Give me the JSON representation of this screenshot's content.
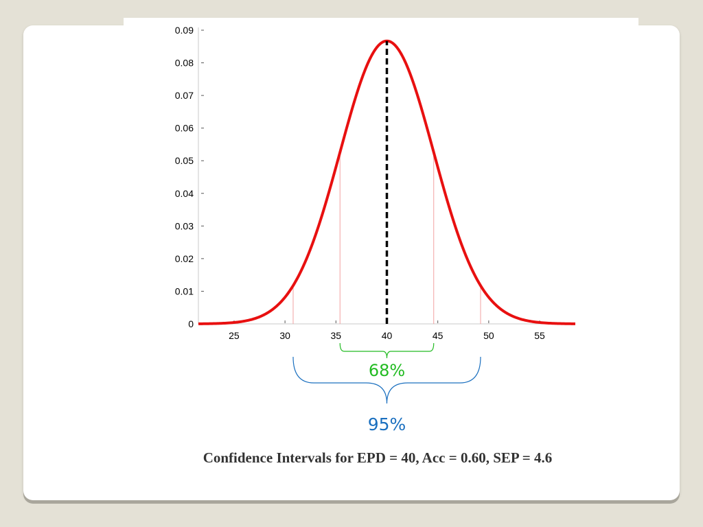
{
  "slide": {
    "caption": "Confidence Intervals for EPD = 40, Acc = 0.60, SEP = 4.6"
  },
  "chart_data": {
    "type": "line",
    "title": "",
    "xlabel": "",
    "ylabel": "",
    "xlim": [
      21.5,
      58.5
    ],
    "ylim": [
      0,
      0.09
    ],
    "x_ticks": [
      "25",
      "30",
      "35",
      "40",
      "45",
      "50",
      "55"
    ],
    "y_ticks": [
      "0",
      "0.01",
      "0.02",
      "0.03",
      "0.04",
      "0.05",
      "0.06",
      "0.07",
      "0.08",
      "0.09"
    ],
    "series": [
      {
        "color": "#e81010",
        "distribution": "normal",
        "mean": 40,
        "sd": 4.6,
        "peak": 0.0867
      }
    ],
    "mean_line": {
      "x": 40,
      "color": "#000000",
      "style": "dashed"
    },
    "interval_lines": [
      30.8,
      35.4,
      44.6,
      49.2
    ],
    "brackets": [
      {
        "label": "68%",
        "from": 35.4,
        "to": 44.6,
        "color": "#22bb22"
      },
      {
        "label": "95%",
        "from": 30.8,
        "to": 49.2,
        "color": "#1a6fbf"
      }
    ],
    "grid": false,
    "legend": "none"
  }
}
